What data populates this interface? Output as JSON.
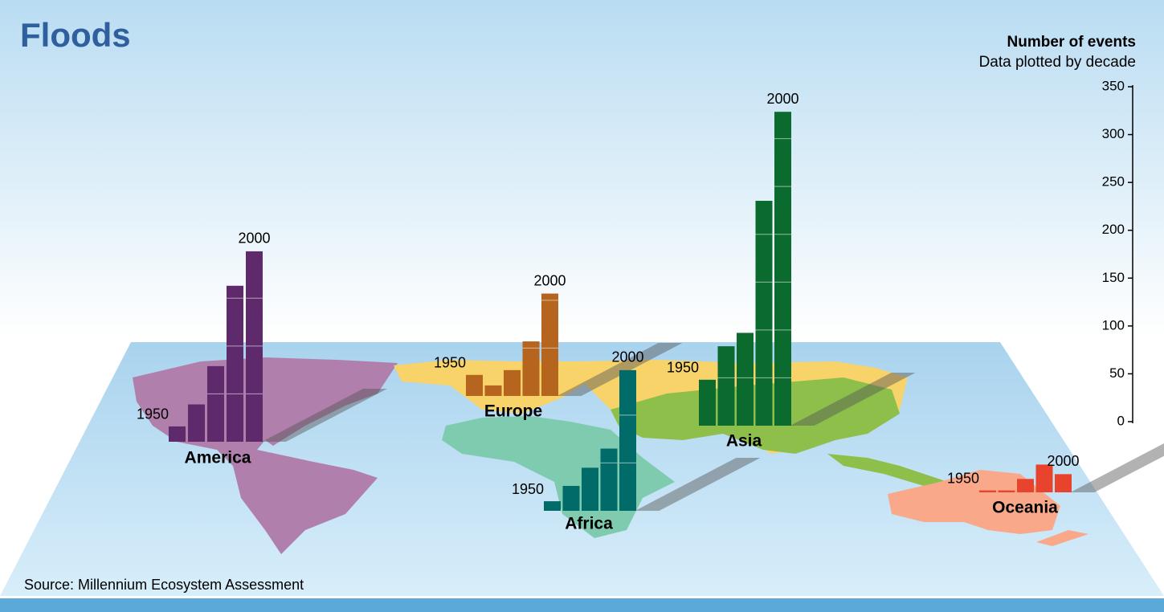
{
  "chart_data": {
    "type": "bar",
    "title": "Floods",
    "y_axis_label": "Number of events",
    "subtitle": "Data plotted by decade",
    "source": "Source: Millennium Ecosystem Assessment",
    "categories": [
      "1950",
      null,
      null,
      null,
      "2000"
    ],
    "ylim": [
      0,
      350
    ],
    "yticks": [
      0,
      50,
      100,
      150,
      200,
      250,
      300,
      350
    ],
    "series": [
      {
        "name": "America",
        "color": "#5e2a6b",
        "values": [
          16,
          39,
          79,
          163,
          199
        ]
      },
      {
        "name": "Europe",
        "color": "#b5651d",
        "values": [
          22,
          11,
          27,
          57,
          107
        ]
      },
      {
        "name": "Africa",
        "color": "#006b68",
        "values": [
          10,
          26,
          45,
          65,
          147
        ]
      },
      {
        "name": "Asia",
        "color": "#0b6b2e",
        "values": [
          48,
          83,
          97,
          235,
          328
        ]
      },
      {
        "name": "Oceania",
        "color": "#e8432c",
        "values": [
          2,
          2,
          14,
          29,
          19
        ]
      }
    ]
  }
}
